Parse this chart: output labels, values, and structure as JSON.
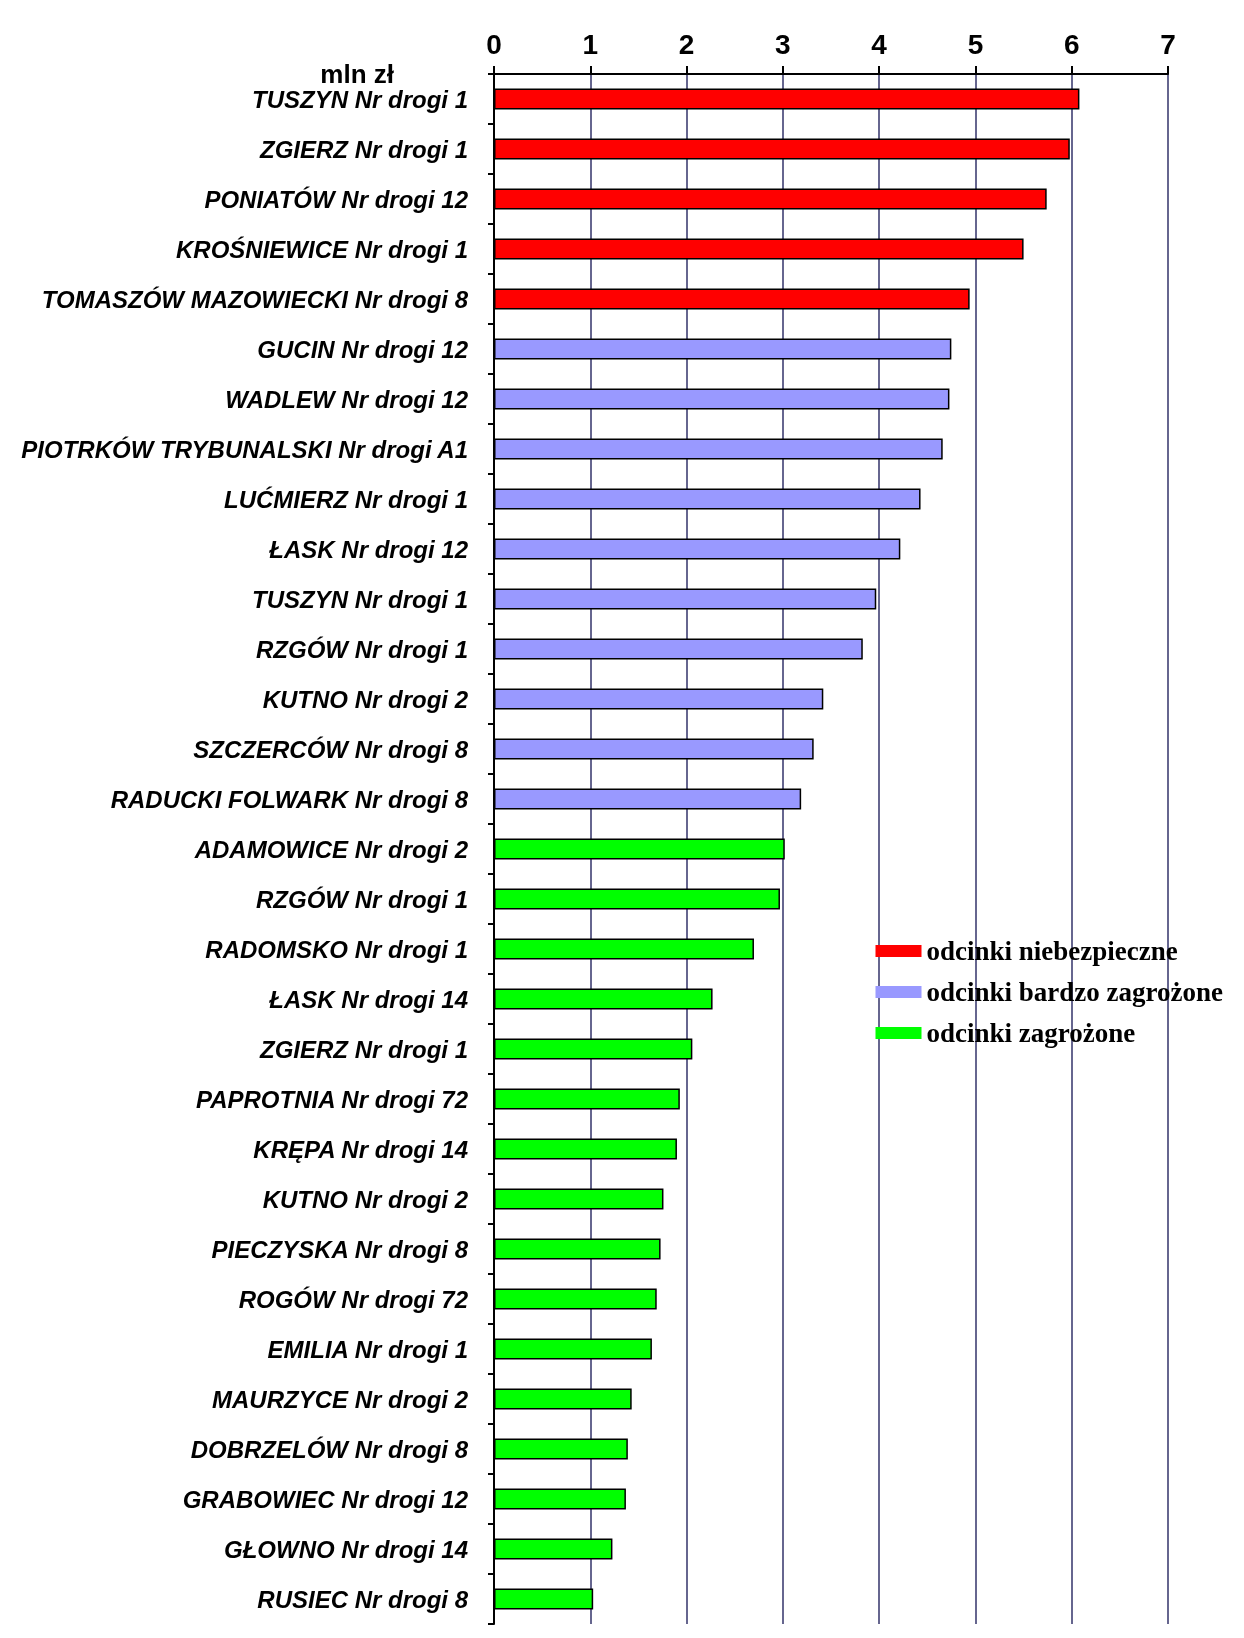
{
  "chart_data": {
    "type": "bar",
    "orientation": "horizontal",
    "stacked": true,
    "xlabel": "mln zł",
    "categories": [
      "TUSZYN Nr drogi 1",
      "ZGIERZ Nr drogi 1",
      "PONIATÓW Nr drogi 12",
      "KROŚNIEWICE Nr drogi 1",
      "TOMASZÓW MAZOWIECKI Nr drogi 8",
      "GUCIN Nr drogi 12",
      "WADLEW Nr drogi 12",
      "PIOTRKÓW TRYBUNALSKI Nr drogi A1",
      "LUĆMIERZ Nr drogi 1",
      "ŁASK Nr drogi 12",
      "TUSZYN Nr drogi 1",
      "RZGÓW Nr drogi 1",
      "KUTNO Nr drogi 2",
      "SZCZERCÓW Nr drogi 8",
      "RADUCKI FOLWARK Nr drogi 8",
      "ADAMOWICE Nr drogi 2",
      "RZGÓW Nr drogi 1",
      "RADOMSKO Nr drogi 1",
      "ŁASK Nr drogi 14",
      "ZGIERZ Nr drogi 1",
      "PAPROTNIA Nr drogi 72",
      "KRĘPA Nr drogi 14",
      "KUTNO Nr drogi 2",
      "PIECZYSKA Nr drogi 8",
      "ROGÓW Nr drogi 72",
      "EMILIA Nr drogi 1",
      "MAURZYCE Nr drogi 2",
      "DOBRZELÓW Nr drogi 8",
      "GRABOWIEC Nr drogi 12",
      "GŁOWNO Nr drogi 14",
      "RUSIEC Nr drogi 8"
    ],
    "series": [
      {
        "name": "odcinki niebezpieczne",
        "color": "#ff0000",
        "values": [
          6.08,
          5.98,
          5.74,
          5.5,
          4.94,
          null,
          null,
          null,
          null,
          null,
          null,
          null,
          null,
          null,
          null,
          null,
          null,
          null,
          null,
          null,
          null,
          null,
          null,
          null,
          null,
          null,
          null,
          null,
          null,
          null,
          null
        ]
      },
      {
        "name": "odcinki bardzo zagrożone",
        "color": "#9999ff",
        "values": [
          null,
          null,
          null,
          null,
          null,
          4.75,
          4.73,
          4.66,
          4.43,
          4.22,
          3.97,
          3.83,
          3.42,
          3.32,
          3.19,
          null,
          null,
          null,
          null,
          null,
          null,
          null,
          null,
          null,
          null,
          null,
          null,
          null,
          null,
          null,
          null
        ]
      },
      {
        "name": "odcinki zagrożone",
        "color": "#00ff00",
        "values": [
          null,
          null,
          null,
          null,
          null,
          null,
          null,
          null,
          null,
          null,
          null,
          null,
          null,
          null,
          null,
          3.02,
          2.97,
          2.7,
          2.27,
          2.06,
          1.93,
          1.9,
          1.76,
          1.73,
          1.69,
          1.64,
          1.43,
          1.39,
          1.37,
          1.23,
          1.03
        ]
      }
    ],
    "xlim": [
      0,
      7
    ],
    "xticks": [
      0,
      1,
      2,
      3,
      4,
      5,
      6,
      7
    ],
    "grid": "x",
    "legend": "right"
  }
}
